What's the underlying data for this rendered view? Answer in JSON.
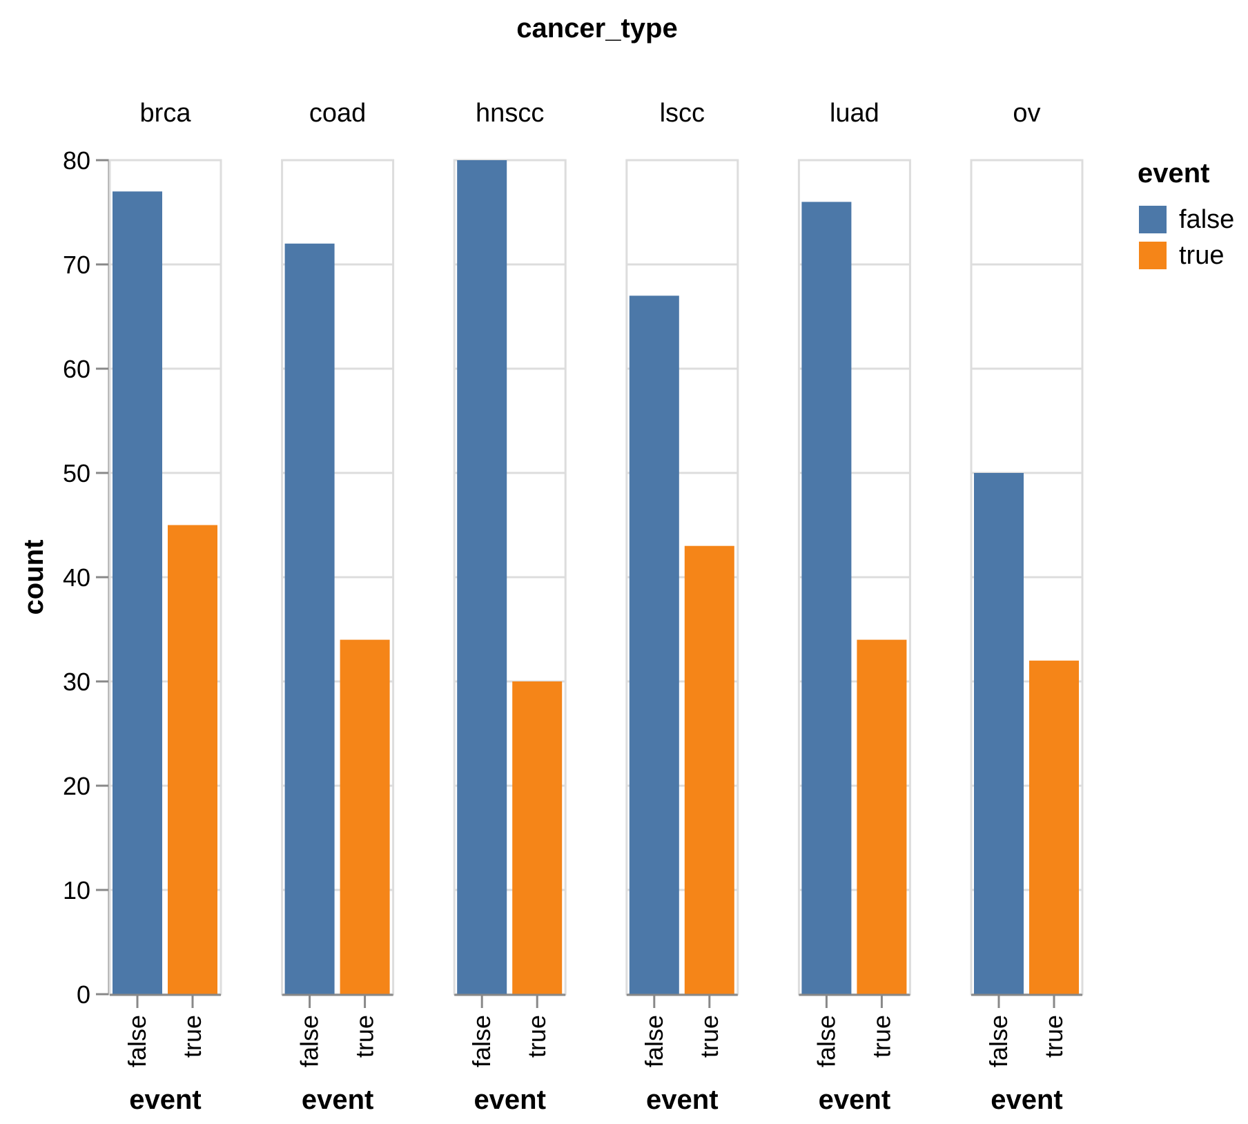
{
  "chart_data": {
    "type": "bar",
    "facet_field": "cancer_type",
    "facets": [
      "brca",
      "coad",
      "hnscc",
      "lscc",
      "luad",
      "ov"
    ],
    "categories": [
      "false",
      "true"
    ],
    "xlabel": "event",
    "ylabel": "count",
    "ylim": [
      0,
      80
    ],
    "yticks": [
      0,
      10,
      20,
      30,
      40,
      50,
      60,
      70,
      80
    ],
    "grid": true,
    "legend": {
      "title": "event",
      "placement": "top-right",
      "entries": [
        {
          "label": "false",
          "color": "#4c78a8"
        },
        {
          "label": "true",
          "color": "#f58518"
        }
      ]
    },
    "values": {
      "brca": {
        "false": 77,
        "true": 45
      },
      "coad": {
        "false": 72,
        "true": 34
      },
      "hnscc": {
        "false": 80,
        "true": 30
      },
      "lscc": {
        "false": 67,
        "true": 43
      },
      "luad": {
        "false": 76,
        "true": 34
      },
      "ov": {
        "false": 50,
        "true": 32
      }
    }
  }
}
